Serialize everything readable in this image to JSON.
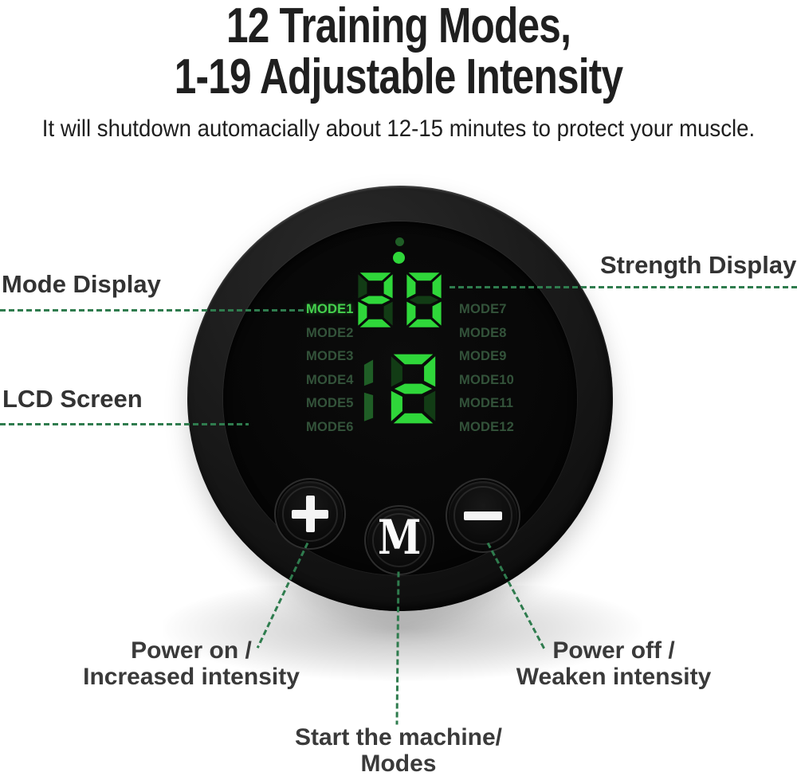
{
  "header": {
    "title_line1": "12 Training Modes,",
    "title_line2": "1-19 Adjustable Intensity",
    "subtitle": "It will shutdown automacially about 12-15 minutes to protect your muscle."
  },
  "callouts": {
    "mode_display": "Mode Display",
    "strength_display": "Strength Display",
    "lcd_screen": "LCD Screen",
    "power_on_line1": "Power on /",
    "power_on_line2": "Increased intensity",
    "power_off_line1": "Power off /",
    "power_off_line2": "Weaken intensity",
    "start_line1": "Start the machine/",
    "start_line2": "Modes"
  },
  "device": {
    "display": {
      "strength_value": "20",
      "intensity_value": "12",
      "modes_left": [
        "MODE1",
        "MODE2",
        "MODE3",
        "MODE4",
        "MODE5",
        "MODE6"
      ],
      "modes_right": [
        "MODE7",
        "MODE8",
        "MODE9",
        "MODE10",
        "MODE11",
        "MODE12"
      ],
      "active_mode": "MODE1"
    },
    "buttons": {
      "plus_label": "+",
      "mode_label": "M",
      "minus_label": "−"
    }
  },
  "colors": {
    "lit_green": "#2fd73a",
    "ghost_green": "#123c15",
    "dim_digit_green": "#1f5e26",
    "mode_active_green": "#44d14d",
    "mode_dim_green": "#33533a",
    "callout_line_green": "#2f7c4e",
    "label_dark": "#333333"
  }
}
